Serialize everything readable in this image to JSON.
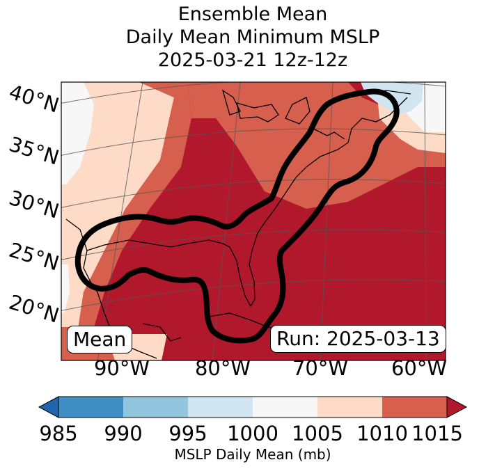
{
  "title": {
    "line1": "Ensemble Mean",
    "line2": "Daily Mean Minimum MSLP",
    "line3": "2025-03-21 12z-12z"
  },
  "map": {
    "lat_labels": [
      "40°N",
      "35°N",
      "30°N",
      "25°N",
      "20°N"
    ],
    "lon_labels": [
      "90°W",
      "80°W",
      "70°W",
      "60°W"
    ],
    "mean_label": "Mean",
    "run_label": "Run: 2025-03-13",
    "field": "MSLP daily mean minimum, shaded by 5 mb bins",
    "contour_icon": "black-threshold-contour"
  },
  "colorbar": {
    "ticks": [
      "985",
      "990",
      "995",
      "1000",
      "1005",
      "1010",
      "1015"
    ],
    "label": "MSLP Daily Mean (mb)",
    "colors": [
      "#3f8fc5",
      "#92c5de",
      "#d1e5f0",
      "#f7f7f7",
      "#fddbc7",
      "#d6604d",
      "#b2182b"
    ],
    "under_color": "#2166ac",
    "over_color": "#b2182b"
  }
}
